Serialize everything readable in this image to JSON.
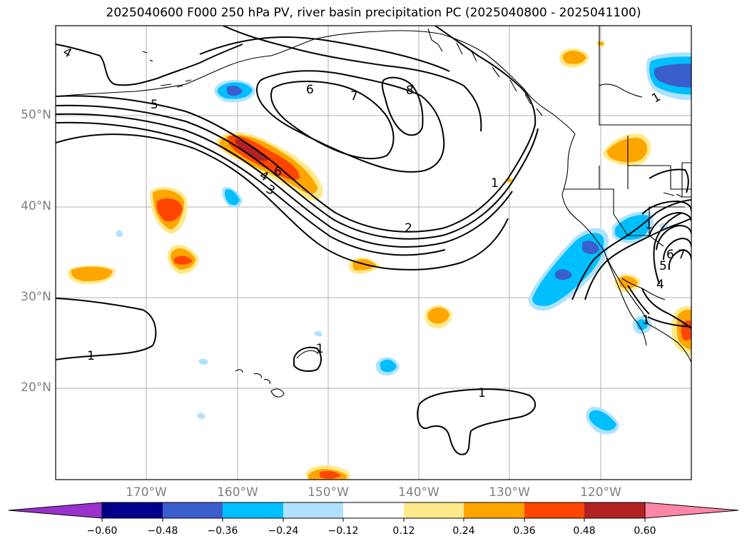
{
  "title": "2025040600 F000 250 hPa PV, river basin precipitation PC (2025040800 - 2025041100)",
  "map": {
    "lat_labels": [
      "50°N",
      "40°N",
      "30°N",
      "20°N"
    ],
    "lon_labels": [
      "170°W",
      "160°W",
      "150°W",
      "140°W",
      "130°W",
      "120°W"
    ],
    "contour_labels": [
      "4",
      "5",
      "6",
      "7",
      "8",
      "6",
      "4",
      "3",
      "2",
      "1",
      "1",
      "1",
      "1",
      "1",
      "1",
      "6",
      "5",
      "7",
      "4",
      "1"
    ],
    "contour_color": "#000000",
    "grid": true
  },
  "colorbar": {
    "ticks": [
      "−0.60",
      "−0.48",
      "−0.36",
      "−0.24",
      "−0.12",
      "0.12",
      "0.24",
      "0.36",
      "0.48",
      "0.60"
    ],
    "colors": [
      "#9932cc",
      "#00008b",
      "#3a5fcd",
      "#00bfff",
      "#b0e2ff",
      "#ffffff",
      "#ffe98a",
      "#ffa500",
      "#ff4500",
      "#b22222",
      "#ff86a6"
    ]
  }
}
